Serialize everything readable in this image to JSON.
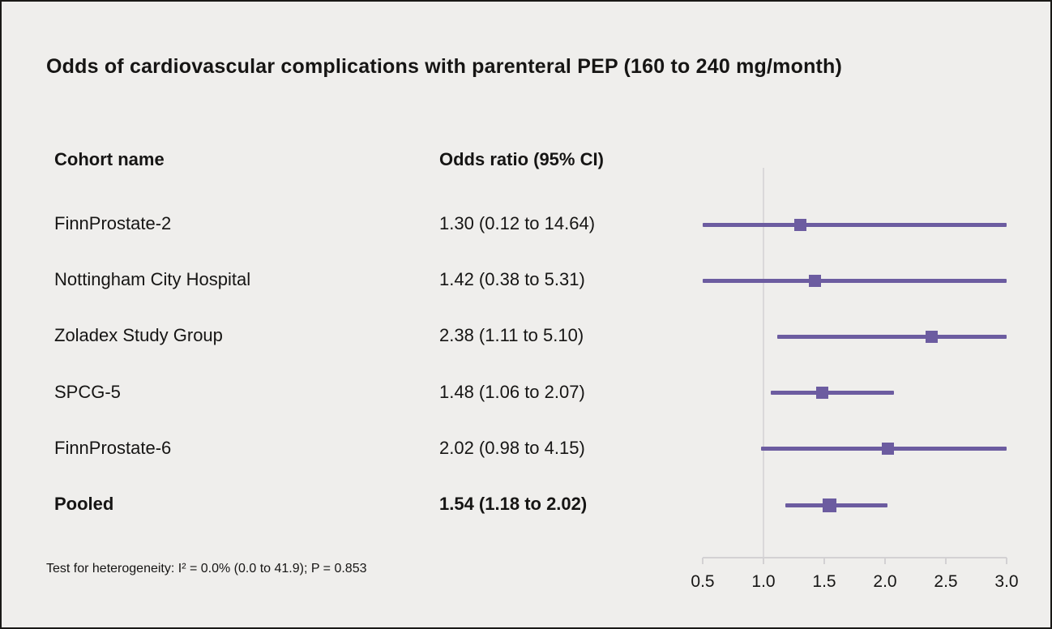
{
  "page": {
    "bg_color": "#efeeec",
    "border_color": "#1a1917",
    "title": "Odds of cardiovascular complications with parenteral PEP (160 to 240 mg/month)",
    "footnote": "Test for heterogeneity: I² = 0.0% (0.0 to 41.9); P = 0.853"
  },
  "table": {
    "col1_header": "Cohort name",
    "col2_header": "Odds ratio (95% CI)"
  },
  "chart_data": {
    "type": "forest",
    "title": "Odds of cardiovascular complications with parenteral PEP (160 to 240 mg/month)",
    "xlim": [
      0.5,
      3.0
    ],
    "axis_ticks": [
      0.5,
      1.0,
      1.5,
      2.0,
      2.5,
      3.0
    ],
    "reference_line": 1.0,
    "accent_color": "#6c5ca0",
    "grid": false,
    "rows": [
      {
        "name": "FinnProstate-2",
        "or_text": "1.30 (0.12 to 14.64)",
        "or": 1.3,
        "lo": 0.12,
        "hi": 14.64,
        "bold": false
      },
      {
        "name": "Nottingham City Hospital",
        "or_text": "1.42 (0.38 to 5.31)",
        "or": 1.42,
        "lo": 0.38,
        "hi": 5.31,
        "bold": false
      },
      {
        "name": "Zoladex Study Group",
        "or_text": "2.38 (1.11 to 5.10)",
        "or": 2.38,
        "lo": 1.11,
        "hi": 5.1,
        "bold": false
      },
      {
        "name": "SPCG-5",
        "or_text": "1.48 (1.06 to 2.07)",
        "or": 1.48,
        "lo": 1.06,
        "hi": 2.07,
        "bold": false
      },
      {
        "name": "FinnProstate-6",
        "or_text": "2.02 (0.98 to 4.15)",
        "or": 2.02,
        "lo": 0.98,
        "hi": 4.15,
        "bold": false
      },
      {
        "name": "Pooled",
        "or_text": "1.54 (1.18 to 2.02)",
        "or": 1.54,
        "lo": 1.18,
        "hi": 2.02,
        "bold": true
      }
    ]
  }
}
